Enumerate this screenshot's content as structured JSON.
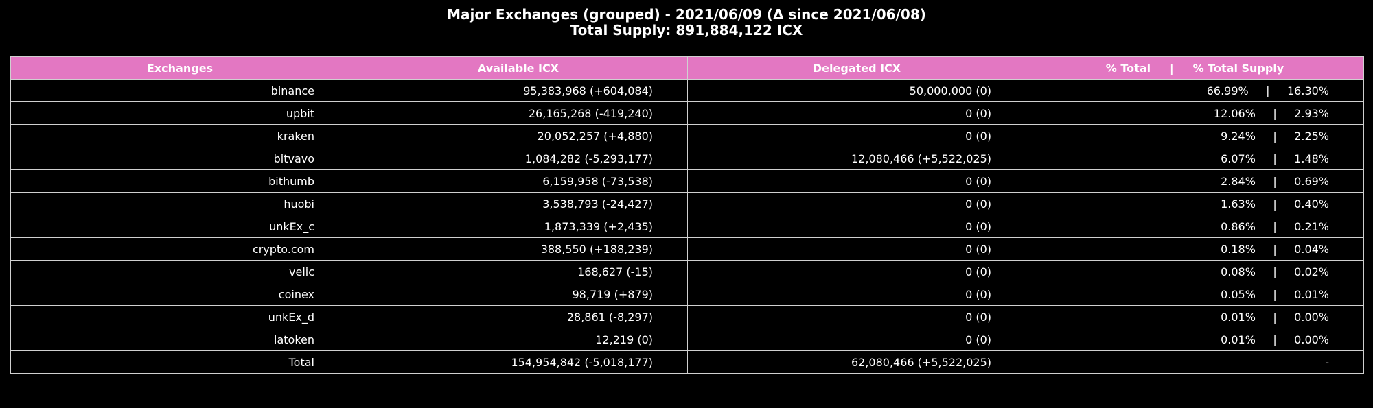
{
  "chart_data": {
    "type": "table",
    "title": "Major Exchanges (grouped) - 2021/06/09 (Δ since 2021/06/08)",
    "subtitle": "Total Supply: 891,884,122 ICX",
    "columns": [
      "Exchanges",
      "Available ICX",
      "Delegated ICX",
      "% Total     |     % Total Supply"
    ],
    "rows": [
      {
        "exchange": "binance",
        "available": "95,383,968 (+604,084)",
        "delegated": "50,000,000 (0)",
        "pct": "66.99%     |     16.30%"
      },
      {
        "exchange": "upbit",
        "available": "26,165,268 (-419,240)",
        "delegated": "0 (0)",
        "pct": "12.06%     |     2.93%"
      },
      {
        "exchange": "kraken",
        "available": "20,052,257 (+4,880)",
        "delegated": "0 (0)",
        "pct": "9.24%     |     2.25%"
      },
      {
        "exchange": "bitvavo",
        "available": "1,084,282 (-5,293,177)",
        "delegated": "12,080,466 (+5,522,025)",
        "pct": "6.07%     |     1.48%"
      },
      {
        "exchange": "bithumb",
        "available": "6,159,958 (-73,538)",
        "delegated": "0 (0)",
        "pct": "2.84%     |     0.69%"
      },
      {
        "exchange": "huobi",
        "available": "3,538,793 (-24,427)",
        "delegated": "0 (0)",
        "pct": "1.63%     |     0.40%"
      },
      {
        "exchange": "unkEx_c",
        "available": "1,873,339 (+2,435)",
        "delegated": "0 (0)",
        "pct": "0.86%     |     0.21%"
      },
      {
        "exchange": "crypto.com",
        "available": "388,550 (+188,239)",
        "delegated": "0 (0)",
        "pct": "0.18%     |     0.04%"
      },
      {
        "exchange": "velic",
        "available": "168,627 (-15)",
        "delegated": "0 (0)",
        "pct": "0.08%     |     0.02%"
      },
      {
        "exchange": "coinex",
        "available": "98,719 (+879)",
        "delegated": "0 (0)",
        "pct": "0.05%     |     0.01%"
      },
      {
        "exchange": "unkEx_d",
        "available": "28,861 (-8,297)",
        "delegated": "0 (0)",
        "pct": "0.01%     |     0.00%"
      },
      {
        "exchange": "latoken",
        "available": "12,219 (0)",
        "delegated": "0 (0)",
        "pct": "0.01%     |     0.00%"
      },
      {
        "exchange": "Total",
        "available": "154,954,842 (-5,018,177)",
        "delegated": "62,080,466 (+5,522,025)",
        "pct": "-"
      }
    ],
    "colors": {
      "header_bg": "#e377c2",
      "background": "#000000",
      "grid": "#d0d0d0",
      "text": "#ffffff"
    }
  }
}
